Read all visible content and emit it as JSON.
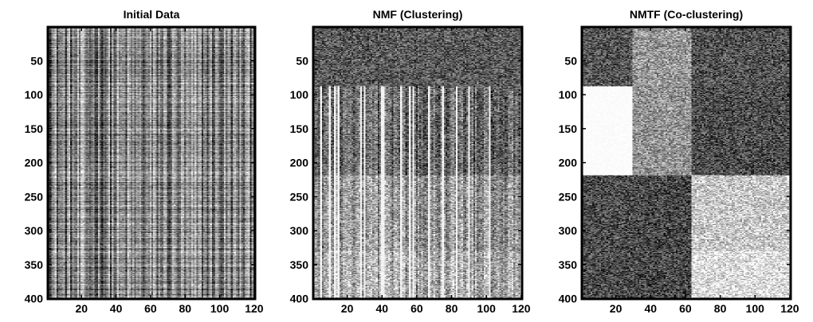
{
  "chart_data": [
    {
      "type": "heatmap",
      "title": "Initial Data",
      "colormap": "grayscale",
      "xlim": [
        0.5,
        120.5
      ],
      "ylim": [
        0.5,
        400.5
      ],
      "y_direction": "reversed",
      "x_ticks": [
        20,
        40,
        60,
        80,
        100,
        120
      ],
      "y_ticks": [
        50,
        100,
        150,
        200,
        250,
        300,
        350,
        400
      ],
      "x_tick_labels": [
        "20",
        "40",
        "60",
        "80",
        "100",
        "120"
      ],
      "y_tick_labels": [
        "50",
        "100",
        "150",
        "200",
        "250",
        "300",
        "350",
        "400"
      ],
      "pattern": "random",
      "row_blocks": [],
      "col_blocks": [],
      "block_levels": [],
      "block_column_stripes": []
    },
    {
      "type": "heatmap",
      "title": "NMF (Clustering)",
      "colormap": "grayscale",
      "xlim": [
        0.5,
        120.5
      ],
      "ylim": [
        0.5,
        400.5
      ],
      "y_direction": "reversed",
      "x_ticks": [
        20,
        40,
        60,
        80,
        100,
        120
      ],
      "y_ticks": [
        50,
        100,
        150,
        200,
        250,
        300,
        350,
        400
      ],
      "x_tick_labels": [
        "20",
        "40",
        "60",
        "80",
        "100",
        "120"
      ],
      "y_tick_labels": [
        "50",
        "100",
        "150",
        "200",
        "250",
        "300",
        "350",
        "400"
      ],
      "pattern": "row-clustered",
      "row_blocks": [
        [
          1,
          87
        ],
        [
          88,
          218
        ],
        [
          219,
          330
        ],
        [
          331,
          400
        ]
      ],
      "col_blocks": [
        [
          1,
          120
        ]
      ],
      "block_levels": [
        [
          0.35
        ],
        [
          0.42
        ],
        [
          0.6
        ],
        [
          0.68
        ]
      ],
      "block_column_stripes": [
        false,
        true,
        true,
        true
      ]
    },
    {
      "type": "heatmap",
      "title": "NMTF (Co-clustering)",
      "colormap": "grayscale",
      "xlim": [
        0.5,
        120.5
      ],
      "ylim": [
        0.5,
        400.5
      ],
      "y_direction": "reversed",
      "x_ticks": [
        20,
        40,
        60,
        80,
        100,
        120
      ],
      "y_ticks": [
        50,
        100,
        150,
        200,
        250,
        300,
        350,
        400
      ],
      "x_tick_labels": [
        "20",
        "40",
        "60",
        "80",
        "100",
        "120"
      ],
      "y_tick_labels": [
        "50",
        "100",
        "150",
        "200",
        "250",
        "300",
        "350",
        "400"
      ],
      "pattern": "block-clustered",
      "row_blocks": [
        [
          1,
          87
        ],
        [
          88,
          218
        ],
        [
          219,
          330
        ],
        [
          331,
          400
        ]
      ],
      "col_blocks": [
        [
          1,
          29
        ],
        [
          30,
          63
        ],
        [
          64,
          120
        ]
      ],
      "block_levels": [
        [
          0.33,
          0.6,
          0.32
        ],
        [
          1.0,
          0.58,
          0.3
        ],
        [
          0.3,
          0.28,
          0.78
        ],
        [
          0.3,
          0.28,
          0.88
        ]
      ],
      "block_column_stripes": []
    }
  ]
}
